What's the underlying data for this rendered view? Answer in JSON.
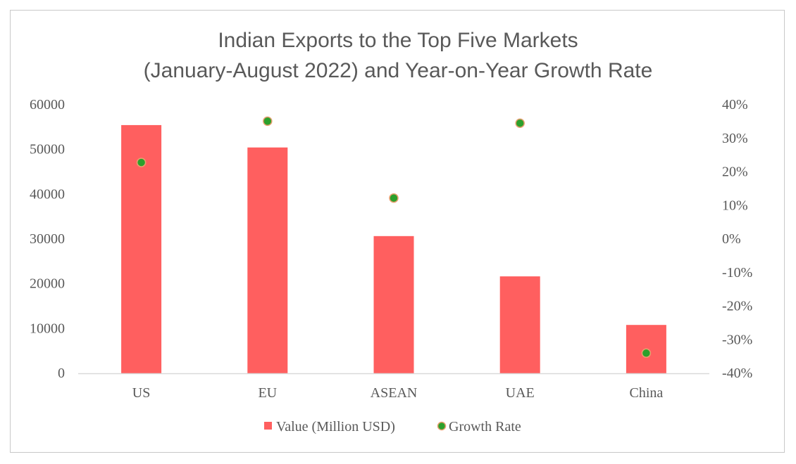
{
  "chart_data": {
    "type": "bar+scatter",
    "title": [
      "Indian Exports to the Top Five Markets",
      "(January-August 2022) and Year-on-Year Growth Rate"
    ],
    "categories": [
      "US",
      "EU",
      "ASEAN",
      "UAE",
      "China"
    ],
    "series": [
      {
        "name": "Value (Million USD)",
        "type": "bar",
        "axis": "left",
        "color": "#FF5F5F",
        "values": [
          55300,
          50300,
          30500,
          21500,
          10650
        ]
      },
      {
        "name": "Growth Rate",
        "type": "scatter",
        "axis": "right",
        "color": "#2CA02C",
        "edge_color": "#E8A070",
        "values": [
          22.6,
          34.9,
          12.0,
          34.3,
          -34.2
        ]
      }
    ],
    "y_left": {
      "lim": [
        0,
        60000
      ],
      "ticks": [
        "0",
        "10000",
        "20000",
        "30000",
        "40000",
        "50000",
        "60000"
      ]
    },
    "y_right": {
      "lim": [
        -40,
        40
      ],
      "unit": "%",
      "ticks": [
        "-40%",
        "-30%",
        "-20%",
        "-10%",
        "0%",
        "10%",
        "20%",
        "30%",
        "40%"
      ]
    },
    "grid": false,
    "legend": "bottom"
  }
}
